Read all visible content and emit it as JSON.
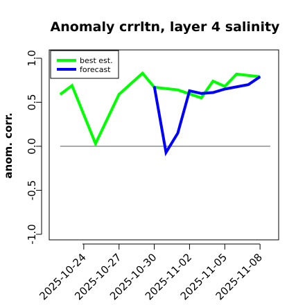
{
  "chart_data": {
    "type": "line",
    "title": "Anomaly crrltn, layer 4 salinity",
    "xlabel": "",
    "ylabel": "anom. corr.",
    "ylim": [
      -1.0,
      1.0
    ],
    "y_ticks": [
      "-1.0",
      "-0.5",
      "0.0",
      "0.5",
      "1.0"
    ],
    "y_tick_values": [
      -1.0,
      -0.5,
      0.0,
      0.5,
      1.0
    ],
    "x_start": "2025-10-21",
    "x_range": [
      "2025-10-21",
      "2025-11-09"
    ],
    "x_ticks": [
      {
        "label": "2025-10-24",
        "date": "2025-10-24",
        "color": "#000000"
      },
      {
        "label": "2025-10-27",
        "date": "2025-10-27",
        "color": "#000000"
      },
      {
        "label": "2025-10-30",
        "date": "2025-10-30",
        "color": "#008000"
      },
      {
        "label": "2025-11-02",
        "date": "2025-11-02",
        "color": "#000000"
      },
      {
        "label": "2025-11-05",
        "date": "2025-11-05",
        "color": "#000000"
      },
      {
        "label": "2025-11-08",
        "date": "2025-11-08",
        "color": "#000000"
      }
    ],
    "reference_line": 0.0,
    "legend_position": "top-left",
    "series": [
      {
        "name": "best est.",
        "color": "#00ff00",
        "points": [
          {
            "x": "2025-10-22",
            "y": 0.59
          },
          {
            "x": "2025-10-23",
            "y": 0.69
          },
          {
            "x": "2025-10-25",
            "y": 0.03
          },
          {
            "x": "2025-10-27",
            "y": 0.59
          },
          {
            "x": "2025-10-29",
            "y": 0.83
          },
          {
            "x": "2025-10-30",
            "y": 0.67
          },
          {
            "x": "2025-11-01",
            "y": 0.64
          },
          {
            "x": "2025-11-03",
            "y": 0.55
          },
          {
            "x": "2025-11-04",
            "y": 0.74
          },
          {
            "x": "2025-11-05",
            "y": 0.68
          },
          {
            "x": "2025-11-06",
            "y": 0.82
          },
          {
            "x": "2025-11-08",
            "y": 0.79
          }
        ]
      },
      {
        "name": "forecast",
        "color": "#0000ff",
        "points": [
          {
            "x": "2025-10-30",
            "y": 0.68
          },
          {
            "x": "2025-10-31",
            "y": -0.07
          },
          {
            "x": "2025-11-01",
            "y": 0.15
          },
          {
            "x": "2025-11-02",
            "y": 0.63
          },
          {
            "x": "2025-11-03",
            "y": 0.6
          },
          {
            "x": "2025-11-04",
            "y": 0.61
          },
          {
            "x": "2025-11-05",
            "y": 0.65
          },
          {
            "x": "2025-11-07",
            "y": 0.7
          },
          {
            "x": "2025-11-08",
            "y": 0.79
          }
        ]
      }
    ]
  }
}
